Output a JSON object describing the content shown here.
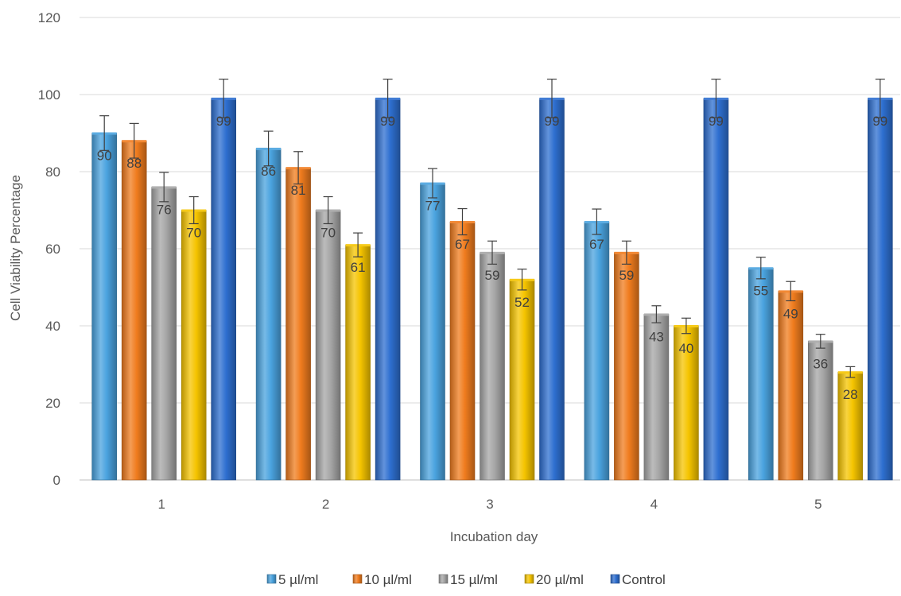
{
  "chart_data": {
    "type": "bar",
    "title": "",
    "xlabel": "Incubation day",
    "ylabel": "Cell Viability Percentage",
    "ylim": [
      0,
      120
    ],
    "yticks": [
      0,
      20,
      40,
      60,
      80,
      100,
      120
    ],
    "grid": true,
    "legend_position": "bottom",
    "categories": [
      "1",
      "2",
      "3",
      "4",
      "5"
    ],
    "series": [
      {
        "name": "5 µl/ml",
        "color": "#4aa3df",
        "values": [
          90,
          86,
          77,
          67,
          55
        ],
        "error": [
          4.5,
          4.5,
          3.8,
          3.3,
          2.8
        ]
      },
      {
        "name": "10 µl/ml",
        "color": "#f07c1e",
        "values": [
          88,
          81,
          67,
          59,
          49
        ],
        "error": [
          4.5,
          4.2,
          3.4,
          3.0,
          2.5
        ]
      },
      {
        "name": "15 µl/ml",
        "color": "#a6a6a6",
        "values": [
          76,
          70,
          59,
          43,
          36
        ],
        "error": [
          3.8,
          3.5,
          3.0,
          2.2,
          1.8
        ]
      },
      {
        "name": "20 µl/ml",
        "color": "#f5c400",
        "values": [
          70,
          61,
          52,
          40,
          28
        ],
        "error": [
          3.5,
          3.1,
          2.7,
          2.0,
          1.4
        ]
      },
      {
        "name": "Control",
        "color": "#2e6fd0",
        "values": [
          99,
          99,
          99,
          99,
          99
        ],
        "error": [
          5.0,
          5.0,
          5.0,
          5.0,
          5.0
        ]
      }
    ]
  }
}
